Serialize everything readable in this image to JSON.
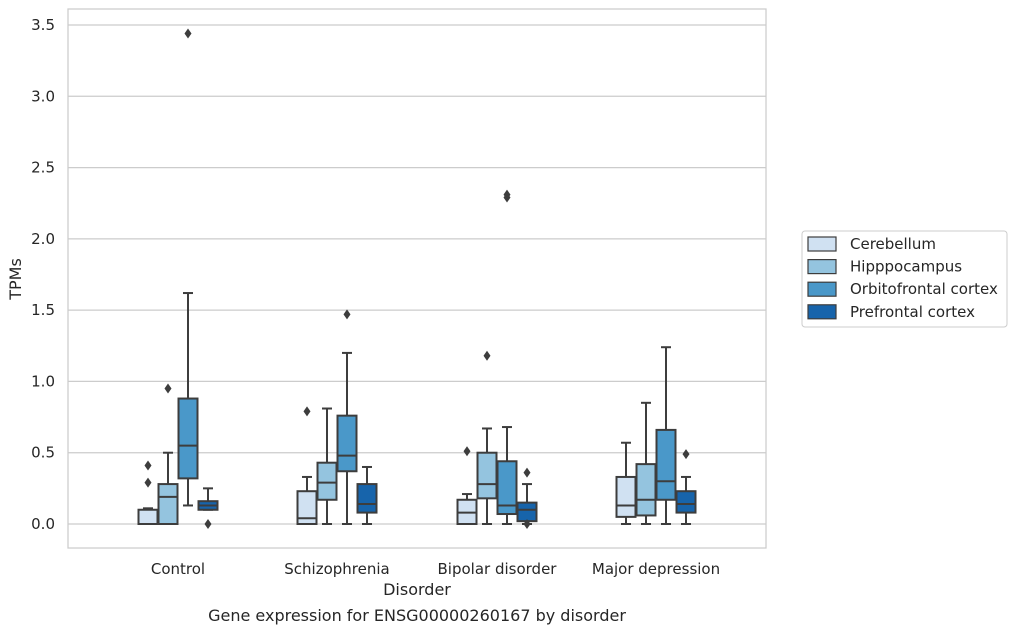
{
  "caption": "Gene expression for ENSG00000260167 by disorder",
  "chart_data": {
    "type": "box",
    "xlabel": "Disorder",
    "ylabel": "TPMs",
    "ylim": [
      -0.17,
      3.6
    ],
    "yticks": [
      "0.0",
      "0.5",
      "1.0",
      "1.5",
      "2.0",
      "2.5",
      "3.0",
      "3.5"
    ],
    "grid": "horizontal",
    "legend_placement": "center-right outside",
    "categories": [
      "Control",
      "Schizophrenia",
      "Bipolar disorder",
      "Major depression"
    ],
    "series": [
      {
        "name": "Cerebellum",
        "color": "#d0e1f2",
        "boxes": [
          {
            "whislo": 0.0,
            "q1": 0.0,
            "med": 0.0,
            "q3": 0.1,
            "whishi": 0.11,
            "fliers": [
              0.41,
              0.29
            ]
          },
          {
            "whislo": 0.0,
            "q1": 0.0,
            "med": 0.04,
            "q3": 0.23,
            "whishi": 0.33,
            "fliers": [
              0.79
            ]
          },
          {
            "whislo": 0.0,
            "q1": 0.0,
            "med": 0.08,
            "q3": 0.17,
            "whishi": 0.21,
            "fliers": [
              0.51
            ]
          },
          {
            "whislo": 0.0,
            "q1": 0.05,
            "med": 0.13,
            "q3": 0.33,
            "whishi": 0.57,
            "fliers": []
          }
        ]
      },
      {
        "name": "Hipppocampus",
        "color": "#94c4df",
        "boxes": [
          {
            "whislo": 0.0,
            "q1": 0.0,
            "med": 0.19,
            "q3": 0.28,
            "whishi": 0.5,
            "fliers": [
              0.95
            ]
          },
          {
            "whislo": 0.0,
            "q1": 0.17,
            "med": 0.29,
            "q3": 0.43,
            "whishi": 0.81,
            "fliers": []
          },
          {
            "whislo": 0.0,
            "q1": 0.18,
            "med": 0.28,
            "q3": 0.5,
            "whishi": 0.67,
            "fliers": [
              1.18
            ]
          },
          {
            "whislo": 0.0,
            "q1": 0.06,
            "med": 0.17,
            "q3": 0.42,
            "whishi": 0.85,
            "fliers": []
          }
        ]
      },
      {
        "name": "Orbitofrontal cortex",
        "color": "#4a98c9",
        "boxes": [
          {
            "whislo": 0.13,
            "q1": 0.32,
            "med": 0.55,
            "q3": 0.88,
            "whishi": 1.62,
            "fliers": [
              3.44
            ]
          },
          {
            "whislo": 0.0,
            "q1": 0.37,
            "med": 0.48,
            "q3": 0.76,
            "whishi": 1.2,
            "fliers": [
              1.47
            ]
          },
          {
            "whislo": 0.0,
            "q1": 0.07,
            "med": 0.13,
            "q3": 0.44,
            "whishi": 0.68,
            "fliers": [
              2.29,
              2.31
            ]
          },
          {
            "whislo": 0.0,
            "q1": 0.17,
            "med": 0.3,
            "q3": 0.66,
            "whishi": 1.24,
            "fliers": []
          }
        ]
      },
      {
        "name": "Prefrontal cortex",
        "color": "#1764ab",
        "boxes": [
          {
            "whislo": 0.1,
            "q1": 0.1,
            "med": 0.13,
            "q3": 0.16,
            "whishi": 0.25,
            "fliers": [
              0.0
            ]
          },
          {
            "whislo": 0.0,
            "q1": 0.08,
            "med": 0.14,
            "q3": 0.28,
            "whishi": 0.4,
            "fliers": []
          },
          {
            "whislo": 0.0,
            "q1": 0.02,
            "med": 0.1,
            "q3": 0.15,
            "whishi": 0.28,
            "fliers": [
              0.36,
              0.0
            ]
          },
          {
            "whislo": 0.0,
            "q1": 0.08,
            "med": 0.14,
            "q3": 0.23,
            "whishi": 0.33,
            "fliers": [
              0.49
            ]
          }
        ]
      }
    ]
  }
}
